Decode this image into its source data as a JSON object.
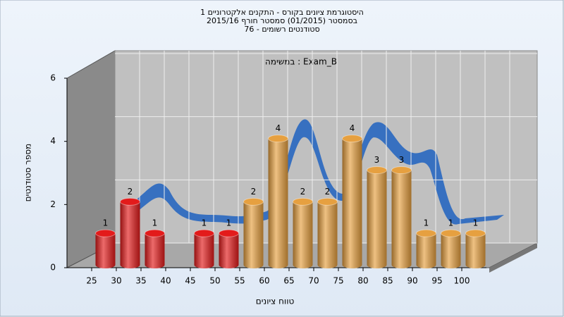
{
  "chart_data": {
    "type": "histogram",
    "title": [
      "היסטוגרמת ציונים בקורס - התקנים אלקטרוניים 1",
      "בסמסטר  (01/2015)  סמסטר חורף 2015/16",
      "סטודנטים רשומים - 76"
    ],
    "annotation": "במשימה : Exam_B",
    "x_label": "טווח ציונים",
    "y_label": "מספר סטודנטים",
    "bins": [
      25,
      30,
      35,
      40,
      45,
      50,
      55,
      60,
      65,
      70,
      75,
      80,
      85,
      90,
      95,
      100,
      105
    ],
    "values": [
      1,
      2,
      1,
      0,
      1,
      1,
      2,
      4,
      2,
      2,
      4,
      3,
      3,
      1,
      1,
      1
    ],
    "colors": [
      "#e31b1b",
      "#e31b1b",
      "#e31b1b",
      "#e31b1b",
      "#e31b1b",
      "#e31b1b",
      "#e6a040",
      "#e6a040",
      "#e6a040",
      "#e6a040",
      "#e6a040",
      "#e6a040",
      "#e6a040",
      "#e6a040",
      "#e6a040",
      "#e6a040"
    ],
    "xlim": [
      20,
      105
    ],
    "xticks": [
      25,
      30,
      35,
      40,
      45,
      50,
      55,
      60,
      65,
      70,
      75,
      80,
      85,
      90,
      95,
      100
    ],
    "ylim": [
      0,
      6
    ],
    "yticks": [
      0,
      2,
      4,
      6
    ],
    "grid": true
  }
}
